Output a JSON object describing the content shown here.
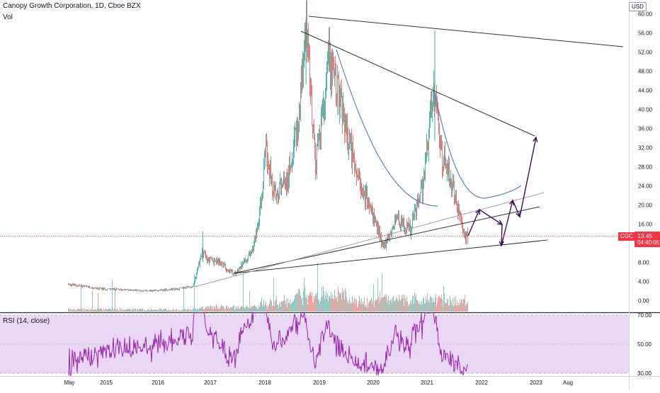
{
  "legend": {
    "title": "Canopy Growth Corporation, 1D, Cboe BZX",
    "volume_label": "Vol"
  },
  "currency": "USD",
  "last": {
    "symbol": "CGC",
    "price": "13.45",
    "countdown": "04:40:05"
  },
  "colors": {
    "up": "#26a69a",
    "down": "#ef5350",
    "rsi_line": "#9c27b0",
    "rsi_band": "#e9d7f5",
    "drawing_purple": "#3e0e5e",
    "arc_blue": "#5b84c4",
    "trend_grey": "#9aa0a6",
    "trend_dark": "#333333"
  },
  "chart_data": [
    {
      "type": "candlestick",
      "title": "Canopy Growth Corporation, 1D, Cboe BZX",
      "x_tick_labels": [
        "May",
        "2015",
        "2016",
        "2017",
        "2018",
        "2019",
        "2020",
        "2021",
        "2022",
        "2023",
        "Aug"
      ],
      "y_tick_labels": [
        "60.00",
        "56.00",
        "52.00",
        "48.00",
        "44.00",
        "40.00",
        "36.00",
        "32.00",
        "28.00",
        "24.00",
        "20.00",
        "16.00",
        "12.00",
        "8.00",
        "4.00",
        "0.00"
      ],
      "ylim": [
        0,
        60
      ],
      "grid": false,
      "price_series_approx": [
        {
          "date": "2014-05",
          "price": 3.5
        },
        {
          "date": "2014-12",
          "price": 2.5
        },
        {
          "date": "2015-12",
          "price": 2.0
        },
        {
          "date": "2016-06",
          "price": 2.5
        },
        {
          "date": "2016-09",
          "price": 3.0
        },
        {
          "date": "2016-11",
          "price": 10.5
        },
        {
          "date": "2016-12",
          "price": 8.5
        },
        {
          "date": "2017-03",
          "price": 8.0
        },
        {
          "date": "2017-06",
          "price": 5.5
        },
        {
          "date": "2017-10",
          "price": 10.0
        },
        {
          "date": "2017-12",
          "price": 20.0
        },
        {
          "date": "2018-01",
          "price": 32.0
        },
        {
          "date": "2018-03",
          "price": 22.0
        },
        {
          "date": "2018-06",
          "price": 26.0
        },
        {
          "date": "2018-08",
          "price": 36.0
        },
        {
          "date": "2018-10",
          "price": 56.5
        },
        {
          "date": "2018-12",
          "price": 28.0
        },
        {
          "date": "2019-03",
          "price": 50.0
        },
        {
          "date": "2019-06",
          "price": 40.0
        },
        {
          "date": "2019-09",
          "price": 26.0
        },
        {
          "date": "2019-12",
          "price": 20.0
        },
        {
          "date": "2020-03",
          "price": 11.0
        },
        {
          "date": "2020-06",
          "price": 17.0
        },
        {
          "date": "2020-09",
          "price": 15.0
        },
        {
          "date": "2020-12",
          "price": 25.0
        },
        {
          "date": "2021-02",
          "price": 45.0
        },
        {
          "date": "2021-04",
          "price": 30.0
        },
        {
          "date": "2021-06",
          "price": 25.0
        },
        {
          "date": "2021-08",
          "price": 17.0
        },
        {
          "date": "2021-09",
          "price": 13.45
        }
      ],
      "last_price": 13.45
    },
    {
      "type": "line",
      "title": "RSI (14, close)",
      "y_tick_labels": [
        "70.00",
        "50.00",
        "30.00"
      ],
      "ylim": [
        28,
        72
      ],
      "band": [
        30,
        70
      ]
    }
  ]
}
